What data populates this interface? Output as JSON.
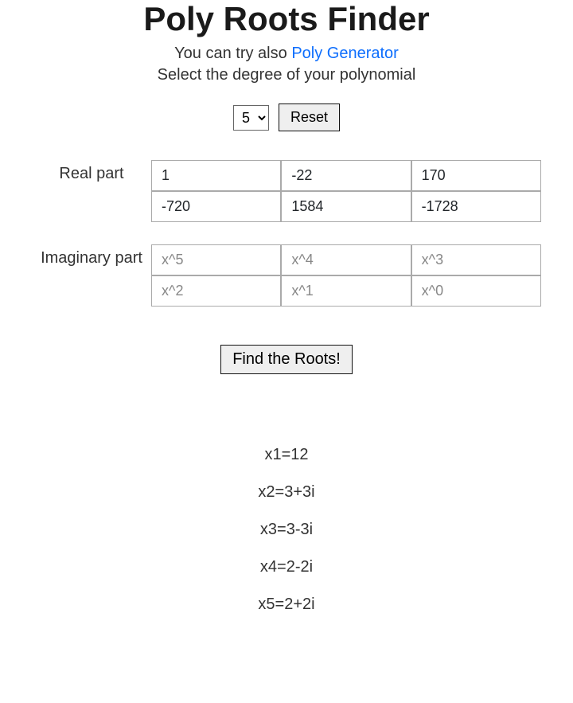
{
  "title": "Poly Roots Finder",
  "subtitle_prefix": "You can try also ",
  "subtitle_link": "Poly Generator",
  "instruction": "Select the degree of your polynomial",
  "degree_selected": "5",
  "reset_label": "Reset",
  "real_part_label": "Real part",
  "imaginary_part_label": "Imaginary part",
  "real_coeffs": [
    "1",
    "-22",
    "170",
    "-720",
    "1584",
    "-1728"
  ],
  "imag_placeholders": [
    "x^5",
    "x^4",
    "x^3",
    "x^2",
    "x^1",
    "x^0"
  ],
  "find_button_label": "Find the Roots!",
  "roots": [
    "x1=12",
    "x2=3+3i",
    "x3=3-3i",
    "x4=2-2i",
    "x5=2+2i"
  ],
  "colors": {
    "link": "#0d6efd",
    "text": "#212529",
    "border": "#aaaaaa",
    "button_bg": "#efefef"
  }
}
